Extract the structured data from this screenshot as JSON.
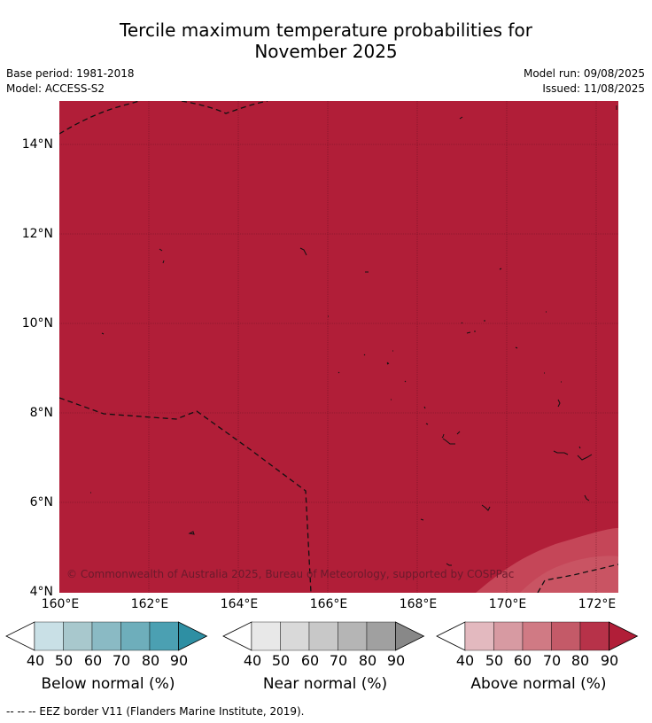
{
  "header": {
    "title_line1": "Tercile maximum temperature probabilities for",
    "title_line2": "November 2025",
    "base_period": "Base period: 1981-2018",
    "model": "Model: ACCESS-S2",
    "model_run": "Model run: 09/08/2025",
    "issued": "Issued: 11/08/2025"
  },
  "map": {
    "region_color": "#b11e38",
    "edge_color": "#c54658",
    "copyright": "© Commonwealth of Australia 2025, Bureau of Meteorology, supported by COSPPac",
    "lat_labels": [
      "14°N",
      "12°N",
      "10°N",
      "8°N",
      "6°N",
      "4°N"
    ],
    "lon_labels": [
      "160°E",
      "162°E",
      "164°E",
      "166°E",
      "168°E",
      "170°E",
      "172°E"
    ]
  },
  "colorbars": [
    {
      "title": "Below normal (%)",
      "ticks": [
        "40",
        "50",
        "60",
        "70",
        "80",
        "90"
      ],
      "colors": [
        "#ffffff",
        "#c9e0e6",
        "#a8c8cd",
        "#8abac4",
        "#6eaebb",
        "#4ba0b2",
        "#2e8fa3"
      ]
    },
    {
      "title": "Near normal (%)",
      "ticks": [
        "40",
        "50",
        "60",
        "70",
        "80",
        "90"
      ],
      "colors": [
        "#ffffff",
        "#e8e8e8",
        "#d9d9d9",
        "#c8c8c8",
        "#b5b5b5",
        "#a0a0a0",
        "#888888"
      ]
    },
    {
      "title": "Above normal (%)",
      "ticks": [
        "40",
        "50",
        "60",
        "70",
        "80",
        "90"
      ],
      "colors": [
        "#ffffff",
        "#e3b9bf",
        "#d79aa2",
        "#d07a84",
        "#c45a68",
        "#b73249",
        "#b11e38"
      ]
    }
  ],
  "footnote": "--  --  -- EEZ border V11 (Flanders Marine Institute, 2019)."
}
